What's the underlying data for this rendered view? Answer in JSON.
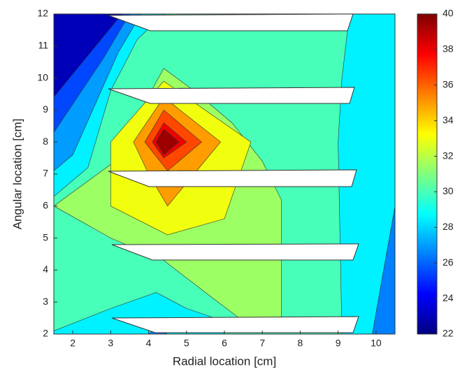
{
  "chart_data": {
    "type": "contour",
    "xlabel": "Radial location [cm]",
    "ylabel": "Angular location [cm]",
    "xlim": [
      1.5,
      10.5
    ],
    "ylim": [
      2,
      12
    ],
    "xticks": [
      2,
      3,
      4,
      5,
      6,
      7,
      8,
      9,
      10
    ],
    "yticks": [
      2,
      3,
      4,
      5,
      6,
      7,
      8,
      9,
      10,
      11,
      12
    ],
    "colormap": "jet",
    "clim": [
      22,
      40
    ],
    "cticks": [
      22,
      24,
      26,
      28,
      30,
      32,
      34,
      36,
      38,
      40
    ],
    "grid": false,
    "regions": [
      {
        "level": 30,
        "points": [
          [
            1.5,
            2
          ],
          [
            10.5,
            2
          ],
          [
            10.5,
            12
          ],
          [
            1.5,
            12
          ]
        ]
      },
      {
        "level": 28.5,
        "points": [
          [
            9.3,
            12
          ],
          [
            10.5,
            12
          ],
          [
            10.5,
            2
          ],
          [
            9.1,
            2
          ],
          [
            9,
            8
          ],
          [
            9.1,
            10
          ]
        ]
      },
      {
        "level": 28.5,
        "points": [
          [
            1.5,
            2
          ],
          [
            6,
            2
          ],
          [
            6,
            2.4
          ],
          [
            5,
            2.8
          ],
          [
            4.2,
            3.3
          ],
          [
            3,
            2.8
          ],
          [
            1.5,
            2.1
          ]
        ]
      },
      {
        "level": 26.5,
        "points": [
          [
            4,
            2
          ],
          [
            4.5,
            2
          ],
          [
            4.2,
            2.2
          ]
        ]
      },
      {
        "level": 26.5,
        "points": [
          [
            9.9,
            2
          ],
          [
            10.5,
            2
          ],
          [
            10.5,
            6
          ]
        ]
      },
      {
        "level": 28.5,
        "points": [
          [
            1.5,
            12
          ],
          [
            4.4,
            12
          ],
          [
            3.7,
            11.2
          ],
          [
            3,
            9.6
          ],
          [
            2.4,
            7.2
          ],
          [
            1.5,
            6.3
          ]
        ]
      },
      {
        "level": 27,
        "points": [
          [
            1.5,
            12
          ],
          [
            3.8,
            12
          ],
          [
            3.2,
            10.8
          ],
          [
            2.6,
            9.2
          ],
          [
            2,
            7.6
          ],
          [
            1.5,
            7.1
          ]
        ]
      },
      {
        "level": 25.5,
        "points": [
          [
            1.5,
            12
          ],
          [
            3.5,
            12
          ],
          [
            2.8,
            10.6
          ],
          [
            1.5,
            8.3
          ]
        ]
      },
      {
        "level": 23,
        "points": [
          [
            1.5,
            12
          ],
          [
            3.3,
            12
          ],
          [
            1.5,
            9.4
          ]
        ]
      },
      {
        "level": 31.5,
        "points": [
          [
            1.5,
            6
          ],
          [
            3,
            7.3
          ],
          [
            4.4,
            10.3
          ],
          [
            5.2,
            9.6
          ],
          [
            6.2,
            8.6
          ],
          [
            7,
            7.4
          ],
          [
            7.5,
            6.2
          ],
          [
            7.5,
            2.4
          ],
          [
            6.5,
            2.4
          ],
          [
            5.5,
            3.3
          ],
          [
            4.4,
            4.3
          ],
          [
            3,
            5
          ]
        ]
      },
      {
        "level": 33,
        "points": [
          [
            3,
            8
          ],
          [
            3,
            6
          ],
          [
            4.5,
            5.1
          ],
          [
            6,
            5.6
          ],
          [
            6.7,
            8
          ],
          [
            4.4,
            9.9
          ]
        ]
      },
      {
        "level": 35,
        "points": [
          [
            3.6,
            8
          ],
          [
            4.4,
            9.4
          ],
          [
            5.9,
            8
          ],
          [
            5.2,
            7
          ],
          [
            4.5,
            6
          ],
          [
            4,
            7
          ]
        ]
      },
      {
        "level": 36.5,
        "points": [
          [
            3.9,
            8
          ],
          [
            4.4,
            9
          ],
          [
            5.4,
            8
          ],
          [
            4.5,
            7.1
          ]
        ]
      },
      {
        "level": 38,
        "points": [
          [
            4.1,
            8
          ],
          [
            4.4,
            8.6
          ],
          [
            5,
            8
          ],
          [
            4.4,
            7.5
          ]
        ]
      },
      {
        "level": 39.5,
        "points": [
          [
            4.2,
            8
          ],
          [
            4.4,
            8.4
          ],
          [
            4.8,
            8
          ],
          [
            4.4,
            7.6
          ]
        ]
      }
    ]
  }
}
